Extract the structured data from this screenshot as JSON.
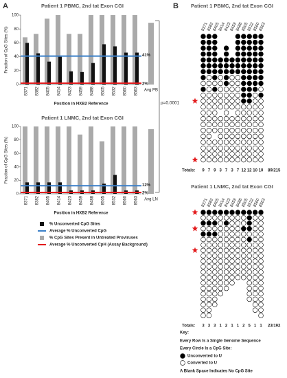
{
  "panel_labels": [
    "A",
    "B"
  ],
  "p_value": "p=0.0001",
  "chart_data": [
    {
      "type": "bar",
      "title": "Patient 1 PBMC, 2nd tat Exon CGI",
      "ylabel": "Fraction of CpG Sites (%)",
      "xlabel": "Position in HXB2 Reference",
      "categories": [
        "8371",
        "8382",
        "8405",
        "8414",
        "8423",
        "8459",
        "8488",
        "8505",
        "8532",
        "8560",
        "8563",
        "Avg PB"
      ],
      "series": [
        {
          "name": "% Unconverted CpG Sites",
          "color": "#111111",
          "values": [
            60,
            45,
            33,
            40,
            19,
            18,
            31,
            58,
            55,
            46,
            46,
            null
          ]
        },
        {
          "name": "% CpG Sites Present in Untreated Proviruses",
          "color": "#aaaaaa",
          "values": [
            68,
            73,
            95,
            100,
            73,
            73,
            100,
            100,
            100,
            100,
            100,
            89
          ]
        }
      ],
      "reference_lines": [
        {
          "name": "Average % Unconverted CpG",
          "color": "#3a7fc8",
          "value": 41,
          "label": "41%"
        },
        {
          "name": "Average % Unconverted CpH (Assay Background)",
          "color": "#e31a1c",
          "value": 2,
          "label": "2%"
        }
      ],
      "ylim": [
        0,
        100
      ],
      "yticks": [
        0,
        20,
        40,
        60,
        80,
        100
      ]
    },
    {
      "type": "bar",
      "title": "Patient 1 LNMC, 2nd tat Exon CGI",
      "ylabel": "Fraction of CpG Sites (%)",
      "xlabel": "Position in HXB2 Reference",
      "categories": [
        "8371",
        "8382",
        "8405",
        "8414",
        "8423",
        "8459",
        "8488",
        "8505",
        "8532",
        "8560",
        "8563",
        "Avg LN"
      ],
      "series": [
        {
          "color": "#111111",
          "values": [
            17,
            17,
            17,
            17,
            5,
            5,
            5,
            15,
            28,
            5,
            5,
            null
          ]
        },
        {
          "color": "#aaaaaa",
          "values": [
            100,
            100,
            100,
            100,
            100,
            88,
            100,
            78,
            100,
            100,
            100,
            96
          ]
        }
      ],
      "reference_lines": [
        {
          "color": "#3a7fc8",
          "value": 12,
          "label": "12%"
        },
        {
          "color": "#e31a1c",
          "value": 2,
          "label": "2%"
        }
      ],
      "ylim": [
        0,
        100
      ],
      "yticks": [
        0,
        20,
        40,
        60,
        80,
        100
      ]
    }
  ],
  "panel_b": {
    "matrices": [
      {
        "title": "Patient 1 PBMC, 2nd tat Exon CGI",
        "columns": [
          "8371",
          "8382",
          "8405",
          "8414",
          "8423",
          "8459",
          "8488",
          "8505",
          "8532",
          "8560",
          "8563"
        ],
        "rows": [
          [
            1,
            1,
            1,
            null,
            null,
            null,
            1,
            1,
            1,
            1,
            1
          ],
          [
            1,
            1,
            1,
            null,
            null,
            null,
            1,
            1,
            1,
            1,
            1
          ],
          [
            1,
            1,
            1,
            null,
            1,
            null,
            1,
            1,
            1,
            1,
            1
          ],
          [
            1,
            1,
            1,
            null,
            1,
            null,
            1,
            1,
            1,
            1,
            1
          ],
          [
            1,
            1,
            1,
            1,
            1,
            1,
            1,
            1,
            1,
            1,
            1
          ],
          [
            1,
            1,
            1,
            1,
            1,
            1,
            1,
            1,
            1,
            1,
            1
          ],
          [
            1,
            1,
            1,
            1,
            1,
            1,
            1,
            1,
            1,
            1,
            1
          ],
          [
            1,
            0,
            1,
            0,
            1,
            0,
            0,
            1,
            1,
            1,
            1
          ],
          [
            0,
            0,
            0,
            0,
            1,
            0,
            0,
            1,
            1,
            1,
            1
          ],
          [
            1,
            0,
            1,
            0,
            0,
            0,
            0,
            1,
            1,
            1,
            0
          ],
          [
            0,
            0,
            0,
            0,
            0,
            0,
            0,
            1,
            1,
            0,
            1
          ],
          [
            0,
            0,
            0,
            0,
            0,
            0,
            0,
            1,
            1,
            0,
            0
          ],
          [
            0,
            0,
            0,
            0,
            0,
            0,
            0,
            0,
            0,
            0,
            0
          ],
          [
            0,
            0,
            0,
            null,
            0,
            null,
            0,
            0,
            0,
            0,
            0
          ],
          [
            0,
            0,
            0,
            0,
            0,
            0,
            0,
            0,
            0,
            0,
            0
          ],
          [
            0,
            0,
            0,
            0,
            0,
            0,
            0,
            0,
            0,
            0,
            0
          ],
          [
            0,
            0,
            0,
            0,
            0,
            0,
            0,
            0,
            0,
            0,
            0
          ],
          [
            0,
            0,
            null,
            0,
            0,
            0,
            0,
            0,
            0,
            0,
            0
          ],
          [
            0,
            0,
            0,
            0,
            0,
            0,
            0,
            0,
            0,
            0,
            0
          ],
          [
            0,
            0,
            0,
            0,
            0,
            0,
            0,
            0,
            0,
            0,
            0
          ],
          [
            0,
            0,
            0,
            0,
            0,
            0,
            0,
            0,
            0,
            0,
            0
          ],
          [
            0,
            0,
            0,
            0,
            0,
            0,
            0,
            0,
            0,
            0,
            0
          ]
        ],
        "starred_rows": [
          11,
          21
        ],
        "totals_label": "Totals:",
        "totals": [
          9,
          7,
          9,
          3,
          7,
          3,
          7,
          12,
          12,
          10,
          10
        ],
        "overall": "89/215"
      },
      {
        "title": "Patient 1 LNMC, 2nd tat Exon CGI",
        "columns": [
          "8371",
          "8382",
          "8405",
          "8414",
          "8423",
          "8459",
          "8488",
          "8505",
          "8532",
          "8560",
          "8563"
        ],
        "rows": [
          [
            1,
            1,
            1,
            1,
            1,
            1,
            1,
            1,
            1,
            1,
            1
          ],
          [
            0,
            0,
            0,
            0,
            0,
            0,
            0,
            0,
            1,
            0,
            0
          ],
          [
            1,
            1,
            1,
            0,
            1,
            0,
            0,
            0,
            1,
            0,
            0
          ],
          [
            0,
            0,
            0,
            0,
            0,
            0,
            0,
            1,
            1,
            0,
            0
          ],
          [
            1,
            1,
            1,
            0,
            0,
            0,
            0,
            0,
            0,
            0,
            0
          ],
          [
            0,
            0,
            0,
            0,
            0,
            0,
            0,
            0,
            1,
            0,
            0
          ],
          [
            0,
            0,
            0,
            0,
            0,
            0,
            0,
            0,
            0,
            0,
            0
          ],
          [
            0,
            0,
            0,
            0,
            0,
            0,
            0,
            0,
            0,
            0,
            0
          ],
          [
            0,
            0,
            0,
            0,
            0,
            0,
            0,
            0,
            0,
            0,
            0
          ],
          [
            0,
            0,
            0,
            0,
            0,
            0,
            0,
            0,
            0,
            0,
            0
          ],
          [
            0,
            0,
            0,
            0,
            0,
            0,
            0,
            0,
            0,
            0,
            0
          ],
          [
            0,
            0,
            0,
            0,
            0,
            0,
            0,
            0,
            0,
            0,
            0
          ],
          [
            0,
            0,
            0,
            0,
            0,
            0,
            0,
            0,
            0,
            0,
            0
          ],
          [
            0,
            0,
            0,
            0,
            0,
            0,
            null,
            null,
            0,
            0,
            0
          ],
          [
            0,
            0,
            0,
            0,
            0,
            null,
            null,
            null,
            0,
            0,
            0
          ],
          [
            0,
            0,
            0,
            0,
            null,
            null,
            null,
            null,
            0,
            0,
            0
          ],
          [
            0,
            0,
            0,
            null,
            null,
            null,
            null,
            null,
            0,
            0,
            0
          ],
          [
            0,
            0,
            0,
            null,
            null,
            null,
            null,
            null,
            null,
            0,
            0
          ],
          [
            0,
            0,
            null,
            null,
            null,
            null,
            null,
            null,
            null,
            0,
            0
          ],
          [
            0,
            0,
            null,
            null,
            null,
            null,
            null,
            null,
            null,
            null,
            0
          ]
        ],
        "starred_rows": [
          0,
          3,
          7
        ],
        "totals_label": "Totals:",
        "totals": [
          3,
          3,
          3,
          1,
          2,
          1,
          1,
          2,
          5,
          1,
          1
        ],
        "overall": "23/192"
      }
    ],
    "key": {
      "title": "Key:",
      "lines": [
        "Every Row Is a Single Genome Sequence",
        "Every Circle Is a CpG Site:"
      ],
      "filled": "Unconverted to U",
      "open": "Converted to U",
      "blank": "A Blank Space Indicates No CpG Site"
    }
  }
}
